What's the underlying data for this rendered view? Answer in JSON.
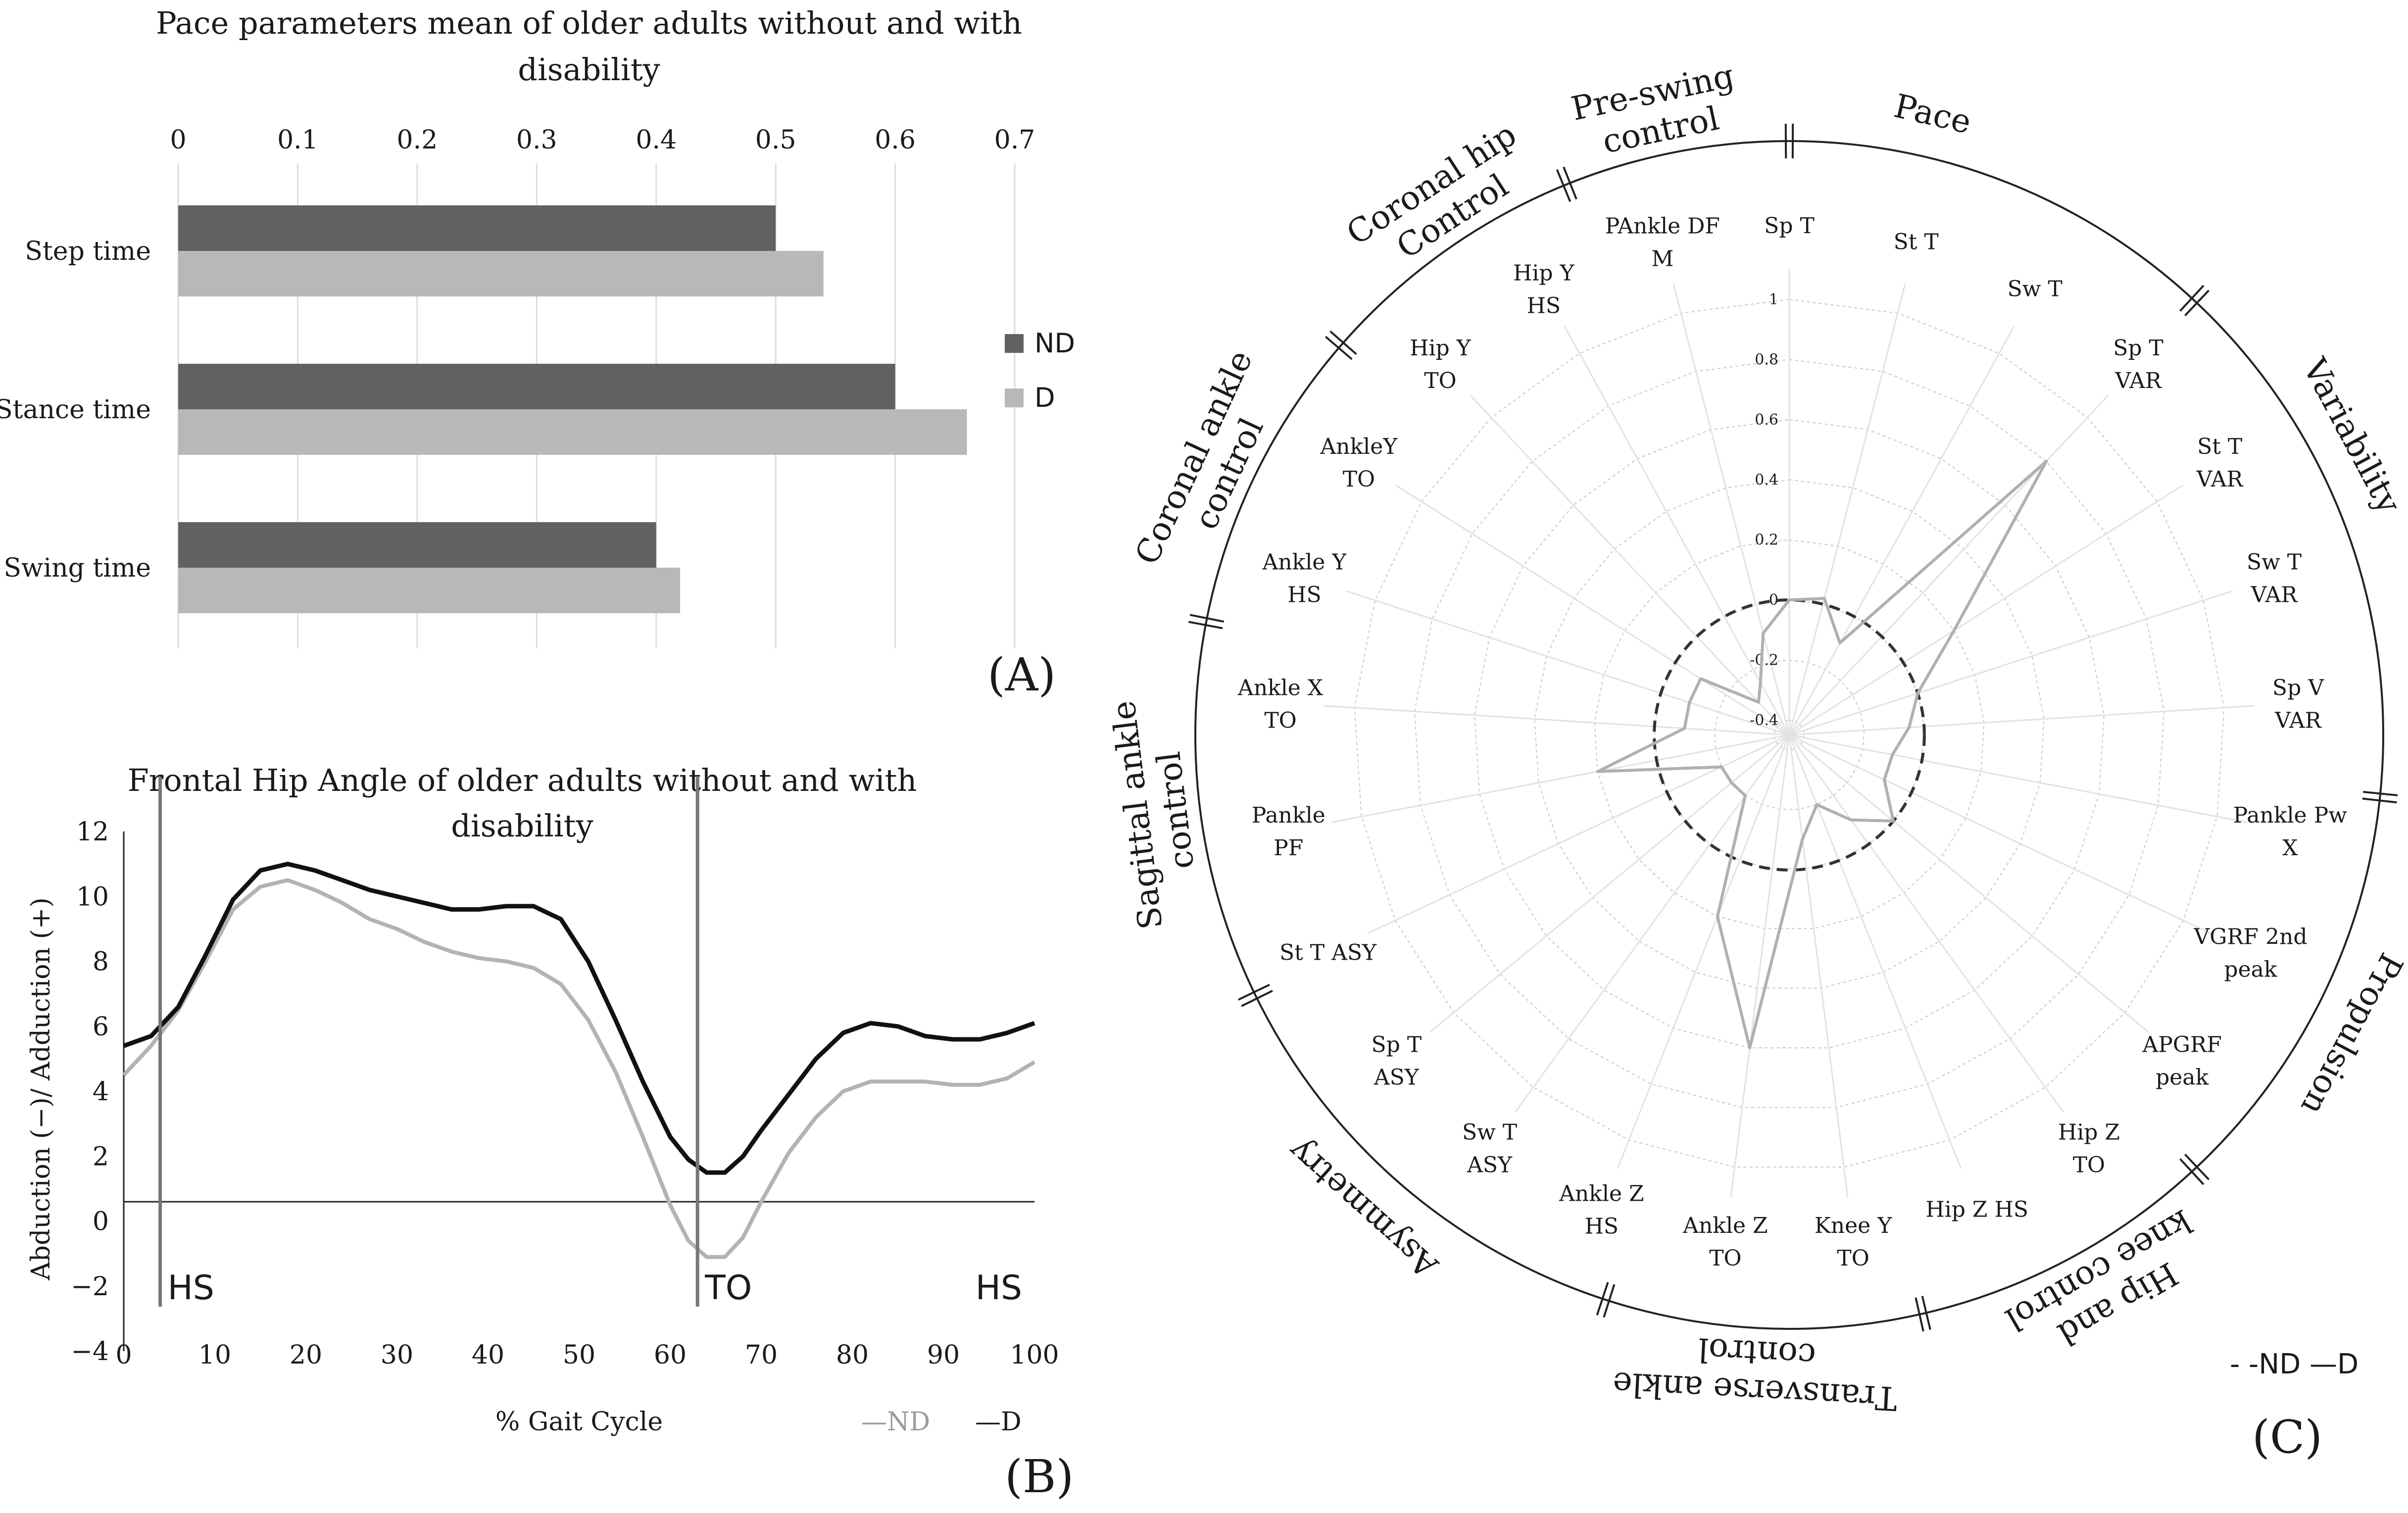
{
  "chart_data": [
    {
      "type": "bar",
      "orientation": "horizontal",
      "title": "Pace parameters mean of older adults without and with disability",
      "title_lines": [
        "Pace parameters mean of older adults without and with",
        "disability"
      ],
      "panel_label": "(A)",
      "categories": [
        "Step time",
        "Stance time",
        "Swing time"
      ],
      "series": [
        {
          "name": "ND",
          "color": "#626060",
          "values": [
            0.5,
            0.6,
            0.4
          ]
        },
        {
          "name": "D",
          "color": "#b8b8b8",
          "values": [
            0.54,
            0.66,
            0.42
          ]
        }
      ],
      "xlim": [
        0,
        0.7
      ],
      "ticks": [
        "0",
        "0.1",
        "0.2",
        "0.3",
        "0.4",
        "0.5",
        "0.6",
        "0.7"
      ],
      "legend": "right"
    },
    {
      "type": "line",
      "title": "Frontal Hip Angle of older adults without and with disability",
      "title_lines": [
        "Frontal Hip Angle of older adults without and with",
        "disability"
      ],
      "panel_label": "(B)",
      "xlabel": "% Gait Cycle",
      "ylabel": "Abduction (−)/ Adduction (+)",
      "xlim": [
        0,
        100
      ],
      "ylim": [
        -4,
        12
      ],
      "xticks": [
        "0",
        "10",
        "20",
        "30",
        "40",
        "50",
        "60",
        "70",
        "80",
        "90",
        "100"
      ],
      "yticks": [
        "−4",
        "−2",
        "0",
        "2",
        "4",
        "6",
        "8",
        "10",
        "12"
      ],
      "events": [
        {
          "label": "HS",
          "x": 4
        },
        {
          "label": "TO",
          "x": 63
        },
        {
          "label": "HS",
          "x": 100
        }
      ],
      "legend": [
        "—ND",
        "—D"
      ],
      "x": [
        0,
        3,
        6,
        9,
        12,
        15,
        18,
        21,
        24,
        27,
        30,
        33,
        36,
        39,
        42,
        45,
        48,
        51,
        54,
        57,
        60,
        62,
        64,
        66,
        68,
        70,
        73,
        76,
        79,
        82,
        85,
        88,
        91,
        94,
        97,
        100
      ],
      "series": [
        {
          "name": "D",
          "color": "#111111",
          "values": [
            5.4,
            5.7,
            6.6,
            8.2,
            9.9,
            10.8,
            11.0,
            10.8,
            10.5,
            10.2,
            10.0,
            9.8,
            9.6,
            9.6,
            9.7,
            9.7,
            9.3,
            8.0,
            6.2,
            4.3,
            2.6,
            1.9,
            1.5,
            1.5,
            2.0,
            2.8,
            3.9,
            5.0,
            5.8,
            6.1,
            6.0,
            5.7,
            5.6,
            5.6,
            5.8,
            6.1
          ]
        },
        {
          "name": "ND",
          "color": "#b3b3b3",
          "values": [
            4.5,
            5.4,
            6.5,
            8.0,
            9.6,
            10.3,
            10.5,
            10.2,
            9.8,
            9.3,
            9.0,
            8.6,
            8.3,
            8.1,
            8.0,
            7.8,
            7.3,
            6.2,
            4.6,
            2.6,
            0.5,
            -0.6,
            -1.1,
            -1.1,
            -0.5,
            0.6,
            2.1,
            3.2,
            4.0,
            4.3,
            4.3,
            4.3,
            4.2,
            4.2,
            4.4,
            4.9
          ]
        }
      ]
    },
    {
      "type": "radar",
      "panel_label": "(C)",
      "rlim": [
        -0.4,
        1
      ],
      "rticks": [
        "1",
        "0.8",
        "0.6",
        "0.4",
        "0.2",
        "0",
        "-0.2",
        "-0.4"
      ],
      "axes": [
        "Sp T",
        "St T",
        "Sw T",
        "Sp T VAR",
        "St T VAR",
        "Sw T VAR",
        "Sp V VAR",
        "Pankle Pw X",
        "VGRF 2nd peak",
        "APGRF peak",
        "Hip Z TO",
        "Hip Z HS",
        "Knee Y TO",
        "Ankle Z TO",
        "Ankle Z HS",
        "Sw T ASY",
        "Sp T ASY",
        "St T ASY",
        "Pankle PF",
        "Ankle X TO",
        "Ankle Y HS",
        "AnkleY TO",
        "Hip Y TO",
        "Hip Y HS",
        "PAnkle DF M"
      ],
      "series": [
        {
          "name": "ND",
          "style": "dashed",
          "values": [
            0,
            0,
            0,
            0,
            0,
            0,
            0,
            0,
            0,
            0,
            0,
            0,
            0,
            0,
            0,
            0,
            0,
            0,
            0,
            0,
            0,
            0,
            0,
            0,
            0
          ]
        },
        {
          "name": "D",
          "style": "solid",
          "values": [
            0,
            0.02,
            -0.1,
            0.8,
            0.2,
            0,
            -0.05,
            -0.1,
            -0.1,
            0,
            -0.1,
            -0.2,
            -0.1,
            0.6,
            0.2,
            -0.2,
            -0.2,
            -0.2,
            0.2,
            -0.1,
            -0.1,
            -0.1,
            -0.3,
            -0.25,
            -0.1
          ]
        }
      ],
      "groups": [
        "Pace",
        "Variability",
        "Propulsion",
        "Hip and knee control",
        "Transverse ankle control",
        "Asymmetry",
        "Sagittal ankle control",
        "Coronal ankle control",
        "Coronal hip Control",
        "Pre-swing control"
      ],
      "legend": "- -ND —D"
    }
  ]
}
